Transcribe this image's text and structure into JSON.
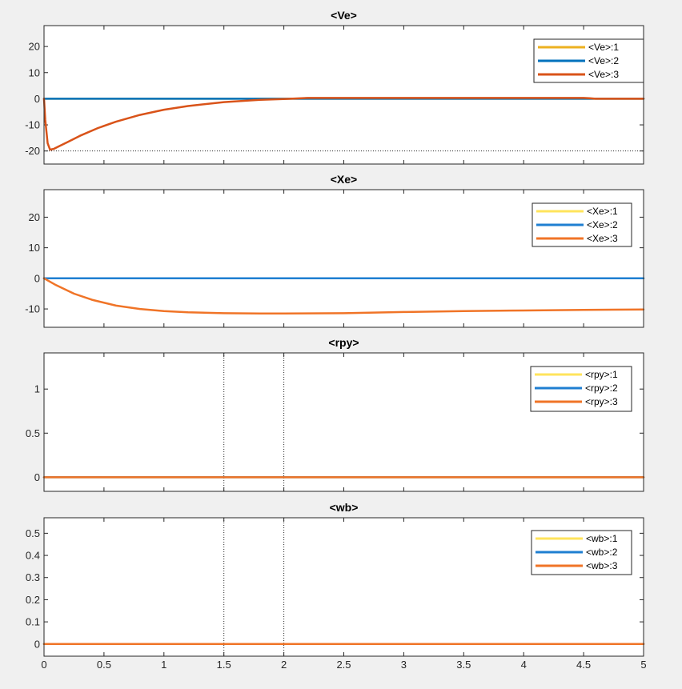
{
  "chart_data": [
    {
      "type": "line",
      "title": "<Ve>",
      "xlabel": "",
      "ylabel": "",
      "xlim": [
        0,
        5
      ],
      "ylim": [
        -25,
        28
      ],
      "yticks": [
        20,
        10,
        0,
        -10,
        -20
      ],
      "show_xticklabels": false,
      "grid": false,
      "legend_position": "top-right",
      "ref_hlines": [
        -20
      ],
      "ref_vlines": [],
      "series": [
        {
          "name": "<Ve>:1",
          "color": "#edb120",
          "x": [
            0,
            5
          ],
          "y": [
            0,
            0
          ]
        },
        {
          "name": "<Ve>:2",
          "color": "#0072bd",
          "x": [
            0,
            5
          ],
          "y": [
            0,
            0
          ]
        },
        {
          "name": "<Ve>:3",
          "color": "#d95319",
          "x": [
            0,
            0.01,
            0.03,
            0.05,
            0.08,
            0.12,
            0.2,
            0.3,
            0.45,
            0.6,
            0.8,
            1.0,
            1.2,
            1.5,
            1.8,
            2.0,
            2.2,
            2.5,
            3.0,
            3.5,
            4.0,
            4.5,
            4.55,
            4.6,
            5.0
          ],
          "y": [
            0,
            -8,
            -17,
            -19.5,
            -19.2,
            -18.3,
            -16.5,
            -14.2,
            -11.2,
            -8.8,
            -6.2,
            -4.2,
            -2.8,
            -1.3,
            -0.4,
            -0.1,
            0.3,
            0.3,
            0.3,
            0.3,
            0.3,
            0.3,
            0.2,
            0,
            0
          ]
        }
      ]
    },
    {
      "type": "line",
      "title": "<Xe>",
      "xlabel": "",
      "ylabel": "",
      "xlim": [
        0,
        5
      ],
      "ylim": [
        -16,
        29
      ],
      "yticks": [
        20,
        10,
        0,
        -10
      ],
      "show_xticklabels": false,
      "grid": false,
      "legend_position": "top-right",
      "ref_hlines": [],
      "ref_vlines": [],
      "series": [
        {
          "name": "<Xe>:1",
          "color": "#ffe45c",
          "x": [
            0,
            5
          ],
          "y": [
            0,
            0
          ]
        },
        {
          "name": "<Xe>:2",
          "color": "#1f7fd1",
          "x": [
            0,
            5
          ],
          "y": [
            0,
            0
          ]
        },
        {
          "name": "<Xe>:3",
          "color": "#f07427",
          "x": [
            0,
            0.1,
            0.25,
            0.4,
            0.6,
            0.8,
            1.0,
            1.2,
            1.5,
            1.8,
            2.0,
            2.5,
            3.0,
            3.5,
            4.0,
            4.5,
            5.0
          ],
          "y": [
            0,
            -2.2,
            -5.0,
            -7.0,
            -8.9,
            -10.0,
            -10.7,
            -11.1,
            -11.4,
            -11.5,
            -11.5,
            -11.4,
            -11.0,
            -10.7,
            -10.5,
            -10.3,
            -10.2
          ]
        }
      ]
    },
    {
      "type": "line",
      "title": "<rpy>",
      "xlabel": "",
      "ylabel": "",
      "xlim": [
        0,
        5
      ],
      "ylim": [
        -0.16,
        1.41
      ],
      "yticks": [
        1,
        0.5,
        0
      ],
      "show_xticklabels": false,
      "grid": false,
      "legend_position": "top-right",
      "ref_hlines": [],
      "ref_vlines": [
        1.5,
        2
      ],
      "series": [
        {
          "name": "<rpy>:1",
          "color": "#ffe45c",
          "x": [
            0,
            5
          ],
          "y": [
            0,
            0
          ]
        },
        {
          "name": "<rpy>:2",
          "color": "#1f7fd1",
          "x": [
            0,
            5
          ],
          "y": [
            0,
            0
          ]
        },
        {
          "name": "<rpy>:3",
          "color": "#f07427",
          "x": [
            0,
            5
          ],
          "y": [
            0,
            0
          ]
        }
      ]
    },
    {
      "type": "line",
      "title": "<wb>",
      "xlabel": "",
      "ylabel": "",
      "xlim": [
        0,
        5
      ],
      "ylim": [
        -0.055,
        0.57
      ],
      "yticks": [
        0.5,
        0.4,
        0.3,
        0.2,
        0.1,
        0
      ],
      "xticks": [
        0,
        0.5,
        1,
        1.5,
        2,
        2.5,
        3,
        3.5,
        4,
        4.5,
        5
      ],
      "show_xticklabels": true,
      "grid": false,
      "legend_position": "top-right",
      "ref_hlines": [],
      "ref_vlines": [
        1.5,
        2
      ],
      "series": [
        {
          "name": "<wb>:1",
          "color": "#ffe45c",
          "x": [
            0,
            5
          ],
          "y": [
            0,
            0
          ]
        },
        {
          "name": "<wb>:2",
          "color": "#1f7fd1",
          "x": [
            0,
            5
          ],
          "y": [
            0,
            0
          ]
        },
        {
          "name": "<wb>:3",
          "color": "#f07427",
          "x": [
            0,
            5
          ],
          "y": [
            0,
            0
          ]
        }
      ]
    }
  ]
}
